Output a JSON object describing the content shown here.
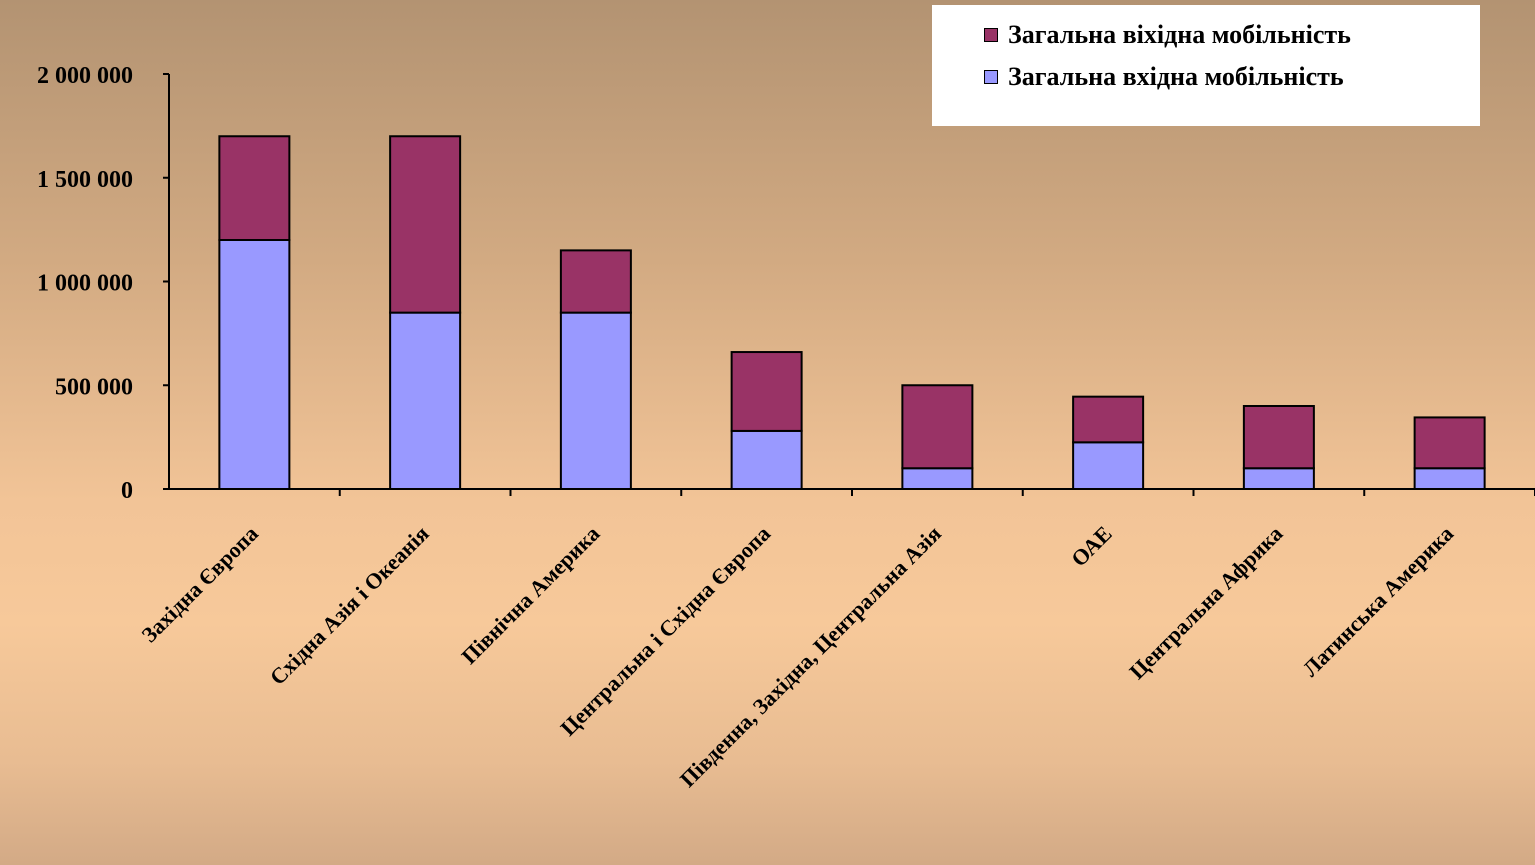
{
  "chart_data": {
    "type": "bar",
    "stacked": true,
    "categories": [
      "Західна Європа",
      "Східна Азія і Океанія",
      "Північна Америка",
      "Центральна і Східна Європа",
      "Південна, Західна, Центральна Азія",
      "ОАЕ",
      "Центральна Африка",
      "Латинська Америка"
    ],
    "series": [
      {
        "name": "Загальна вхідна мобільність",
        "color": "#9999ff",
        "values": [
          1200000,
          850000,
          850000,
          280000,
          100000,
          225000,
          100000,
          100000
        ]
      },
      {
        "name": "Загальна віхідна мобільність",
        "color": "#993366",
        "values": [
          500000,
          850000,
          300000,
          380000,
          400000,
          220000,
          300000,
          245000
        ]
      }
    ],
    "ylim": [
      0,
      2000000
    ],
    "yticks": [
      0,
      500000,
      1000000,
      1500000,
      2000000
    ],
    "ytick_labels": [
      "0",
      "500 000",
      "1 000 000",
      "1 500 000",
      "2 000 000"
    ],
    "legend_position": "top-right",
    "legend_entries": [
      "Загальна віхідна мобільність",
      "Загальна вхідна мобільність"
    ],
    "grid": false
  }
}
